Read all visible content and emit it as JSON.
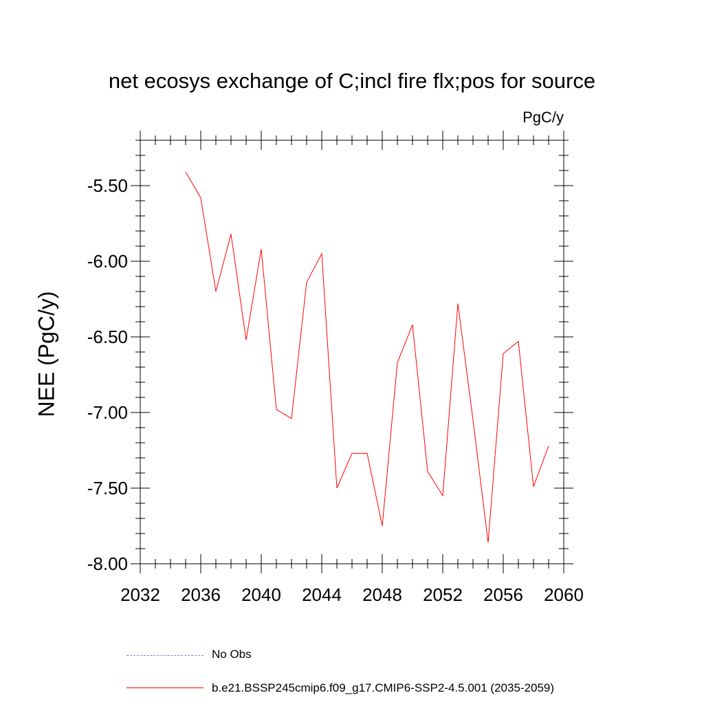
{
  "chart_data": {
    "type": "line",
    "title": "net ecosys exchange of C;incl fire flx;pos for source",
    "units_label": "PgC/y",
    "ylabel": "NEE  (PgC/y)",
    "xlabel": "",
    "xlim": [
      2032,
      2060
    ],
    "ylim": [
      -8.0,
      -5.2
    ],
    "xticks": [
      "2032",
      "2036",
      "2040",
      "2044",
      "2048",
      "2052",
      "2056",
      "2060"
    ],
    "yticks": [
      "-5.50",
      "-6.00",
      "-6.50",
      "-7.00",
      "-7.50",
      "-8.00"
    ],
    "grid": false,
    "legend_position": "bottom",
    "series": [
      {
        "name": "b.e21.BSSP245cmip6.f09_g17.CMIP6-SSP2-4.5.001 (2035-2059)",
        "color": "#ff0000",
        "x": [
          2035,
          2036,
          2037,
          2038,
          2039,
          2040,
          2041,
          2042,
          2043,
          2044,
          2045,
          2046,
          2047,
          2048,
          2049,
          2050,
          2051,
          2052,
          2053,
          2054,
          2055,
          2056,
          2057,
          2058,
          2059
        ],
        "y": [
          -5.41,
          -5.58,
          -6.2,
          -5.82,
          -6.52,
          -5.92,
          -6.98,
          -7.04,
          -6.14,
          -5.95,
          -7.5,
          -7.27,
          -7.27,
          -7.75,
          -6.67,
          -6.42,
          -7.39,
          -7.55,
          -6.28,
          -7.05,
          -7.86,
          -6.61,
          -6.53,
          -7.49,
          -7.22
        ]
      }
    ],
    "legend": [
      {
        "label": "No Obs",
        "style": "dashed",
        "color": "#7b7bd8"
      },
      {
        "label": "b.e21.BSSP245cmip6.f09_g17.CMIP6-SSP2-4.5.001 (2035-2059)",
        "style": "solid",
        "color": "#ff0000"
      }
    ]
  }
}
